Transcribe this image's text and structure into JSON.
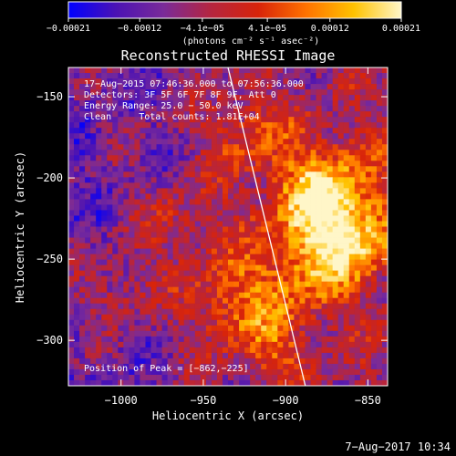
{
  "chart_data": {
    "type": "heatmap",
    "title": "Reconstructed RHESSI Image",
    "xlabel": "Heliocentric X (arcsec)",
    "ylabel": "Heliocentric Y (arcsec)",
    "xlim": [
      -1032,
      -838
    ],
    "ylim": [
      -328,
      -132
    ],
    "x_ticks": [
      {
        "value": -1000,
        "label": "−1000"
      },
      {
        "value": -950,
        "label": "−950"
      },
      {
        "value": -900,
        "label": "−900"
      },
      {
        "value": -850,
        "label": "−850"
      }
    ],
    "y_ticks": [
      {
        "value": -150,
        "label": "−150"
      },
      {
        "value": -200,
        "label": "−200"
      },
      {
        "value": -250,
        "label": "−250"
      },
      {
        "value": -300,
        "label": "−300"
      }
    ],
    "colorbar": {
      "range": [
        -0.00021,
        0.00021
      ],
      "ticks": [
        {
          "value": -0.00021,
          "label": "−0.00021"
        },
        {
          "value": -0.00012,
          "label": "−0.00012"
        },
        {
          "value": -4.1e-05,
          "label": "−4.1e−05"
        },
        {
          "value": 4.1e-05,
          "label": "4.1e−05"
        },
        {
          "value": 0.00012,
          "label": "0.00012"
        },
        {
          "value": 0.00021,
          "label": "0.00021"
        }
      ],
      "unit_label": "(photons cm⁻² s⁻¹ asec⁻²)",
      "colors": [
        "#0000ff",
        "#4b12b4",
        "#7a2b99",
        "#b5253f",
        "#d8240a",
        "#ff7200",
        "#ffc200",
        "#fff6c8"
      ]
    },
    "annotations": {
      "time_range": "17−Aug−2015 07:46:36.000 to 07:56:36.000",
      "detectors": "Detectors: 3F 5F 6F 7F 8F 9F, Att 0",
      "energy_range": "Energy Range: 25.0 − 50.0 keV",
      "method_counts": "Clean     Total counts: 1.81E+04",
      "peak_position": "Position of Peak = [−862,−225]"
    },
    "peak": {
      "x": -862,
      "y": -225
    },
    "limb_line": [
      {
        "x": -935,
        "y": -132
      },
      {
        "x": -888,
        "y": -328
      }
    ]
  },
  "footer": {
    "timestamp": "7−Aug−2017 10:34"
  }
}
